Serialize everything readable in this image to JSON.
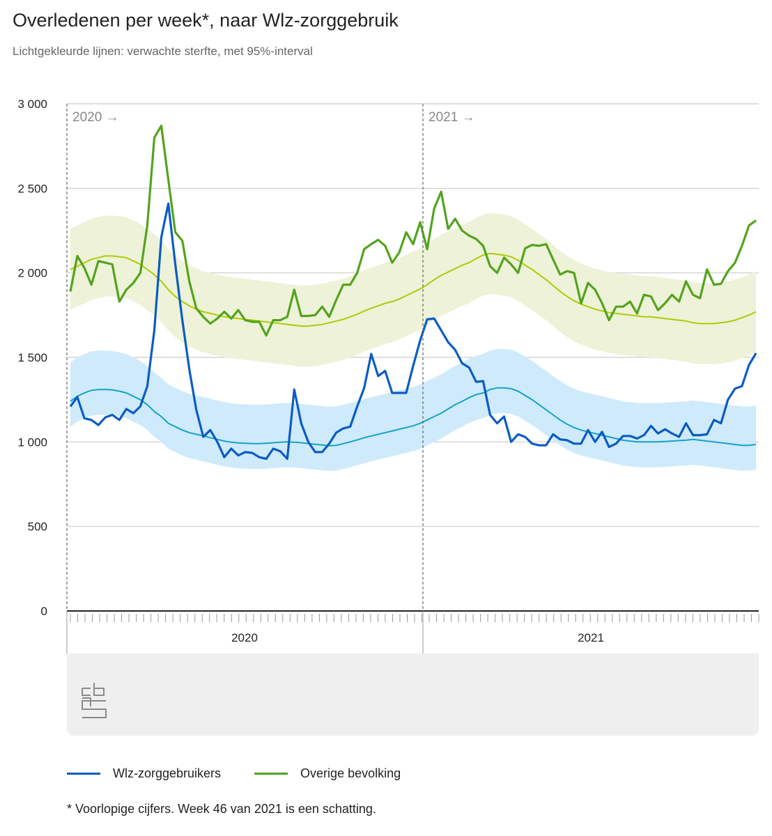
{
  "header": {
    "title": "Overledenen per week*, naar Wlz-zorggebruik",
    "subtitle": "Lichtgekleurde lijnen: verwachte sterfte, met 95%-interval"
  },
  "legend": {
    "wlz_label": "Wlz-zorggebruikers",
    "overige_label": "Overige bevolking"
  },
  "footnote": "* Voorlopige cijfers. Week 46 van 2021 is een schatting.",
  "logo_text": "cbs",
  "colors": {
    "wlz_line": "#0a5cc2",
    "wlz_expected": "#14a3c7",
    "wlz_band": "#cfeafb",
    "overige_line": "#53a31d",
    "overige_expected": "#afcb05",
    "overige_band": "#eef2d8",
    "grid": "#cccccc",
    "footer_panel": "#efefef"
  },
  "chart_data": {
    "type": "line",
    "x_unit": "week (2020 week 1 .. 2021 week 46)",
    "ylim": [
      0,
      3000
    ],
    "y_ticks": [
      0,
      500,
      1000,
      1500,
      2000,
      2500,
      3000
    ],
    "y_tick_labels": [
      "0",
      "500",
      "1 000",
      "1 500",
      "2 000",
      "2 500",
      "3 000"
    ],
    "x_group_labels": [
      "2020",
      "2021"
    ],
    "year_markers": [
      "2020 →",
      "2021 →"
    ],
    "grid": true,
    "legend_position": "bottom",
    "series": [
      {
        "name": "Wlz-zorggebruikers",
        "type": "observed",
        "values": [
          1210,
          1265,
          1140,
          1130,
          1100,
          1145,
          1160,
          1130,
          1195,
          1170,
          1210,
          1330,
          1660,
          2210,
          2410,
          2050,
          1720,
          1430,
          1190,
          1030,
          1070,
          1000,
          910,
          960,
          920,
          940,
          935,
          910,
          900,
          960,
          945,
          900,
          1310,
          1110,
          1000,
          940,
          940,
          990,
          1055,
          1080,
          1090,
          1210,
          1320,
          1520,
          1390,
          1420,
          1290,
          1290,
          1290,
          1450,
          1600,
          1725,
          1730,
          1660,
          1590,
          1545,
          1465,
          1440,
          1355,
          1360,
          1160,
          1110,
          1150,
          1000,
          1045,
          1030,
          990,
          980,
          980,
          1045,
          1015,
          1010,
          990,
          990,
          1070,
          1000,
          1060,
          970,
          990,
          1035,
          1035,
          1020,
          1040,
          1095,
          1050,
          1075,
          1050,
          1030,
          1110,
          1040,
          1040,
          1045,
          1130,
          1110,
          1250,
          1315,
          1330,
          1455,
          1525
        ]
      },
      {
        "name": "Overige bevolking",
        "type": "observed",
        "values": [
          1890,
          2100,
          2030,
          1930,
          2070,
          2060,
          2050,
          1830,
          1900,
          1940,
          2000,
          2280,
          2800,
          2870,
          2550,
          2240,
          2190,
          1950,
          1790,
          1740,
          1700,
          1730,
          1770,
          1730,
          1780,
          1720,
          1710,
          1710,
          1630,
          1720,
          1720,
          1740,
          1900,
          1745,
          1745,
          1750,
          1800,
          1740,
          1840,
          1930,
          1930,
          2000,
          2140,
          2170,
          2195,
          2160,
          2060,
          2120,
          2240,
          2170,
          2300,
          2140,
          2380,
          2480,
          2260,
          2320,
          2250,
          2220,
          2200,
          2160,
          2040,
          2000,
          2090,
          2050,
          2000,
          2145,
          2165,
          2160,
          2170,
          2080,
          1990,
          2010,
          2000,
          1820,
          1940,
          1900,
          1820,
          1720,
          1800,
          1800,
          1830,
          1760,
          1870,
          1860,
          1780,
          1820,
          1870,
          1830,
          1950,
          1870,
          1850,
          2020,
          1930,
          1935,
          2010,
          2060,
          2160,
          2280,
          2310
        ]
      },
      {
        "name": "",
        "type": "expected",
        "values": [
          1240,
          1270,
          1290,
          1305,
          1310,
          1310,
          1308,
          1300,
          1290,
          1270,
          1250,
          1220,
          1180,
          1150,
          1110,
          1090,
          1070,
          1055,
          1045,
          1035,
          1025,
          1015,
          1005,
          998,
          994,
          992,
          990,
          990,
          992,
          995,
          998,
          1000,
          998,
          995,
          990,
          986,
          982,
          978,
          980,
          990,
          1000,
          1012,
          1025,
          1035,
          1045,
          1055,
          1065,
          1075,
          1085,
          1095,
          1110,
          1130,
          1150,
          1170,
          1195,
          1220,
          1240,
          1262,
          1280,
          1290,
          1310,
          1320,
          1320,
          1315,
          1300,
          1275,
          1250,
          1220,
          1190,
          1160,
          1130,
          1105,
          1085,
          1070,
          1060,
          1050,
          1040,
          1030,
          1020,
          1010,
          1005,
          1000,
          1000,
          1000,
          1000,
          1002,
          1005,
          1008,
          1010,
          1015,
          1010,
          1005,
          1000,
          995,
          990,
          985,
          980,
          980,
          985
        ]
      },
      {
        "name": "",
        "type": "expected",
        "values": [
          2020,
          2040,
          2060,
          2080,
          2090,
          2100,
          2100,
          2095,
          2090,
          2070,
          2050,
          2020,
          1990,
          1950,
          1900,
          1860,
          1830,
          1805,
          1785,
          1770,
          1760,
          1750,
          1740,
          1735,
          1730,
          1725,
          1720,
          1715,
          1710,
          1705,
          1700,
          1695,
          1690,
          1685,
          1685,
          1690,
          1695,
          1705,
          1715,
          1725,
          1740,
          1755,
          1775,
          1790,
          1805,
          1820,
          1830,
          1845,
          1865,
          1885,
          1905,
          1930,
          1960,
          1985,
          2005,
          2025,
          2045,
          2060,
          2085,
          2105,
          2115,
          2110,
          2105,
          2095,
          2075,
          2045,
          2020,
          1990,
          1960,
          1925,
          1890,
          1860,
          1835,
          1815,
          1800,
          1785,
          1775,
          1765,
          1760,
          1755,
          1750,
          1745,
          1740,
          1740,
          1735,
          1730,
          1725,
          1720,
          1715,
          1705,
          1700,
          1700,
          1700,
          1705,
          1710,
          1720,
          1735,
          1750,
          1770
        ]
      }
    ]
  }
}
